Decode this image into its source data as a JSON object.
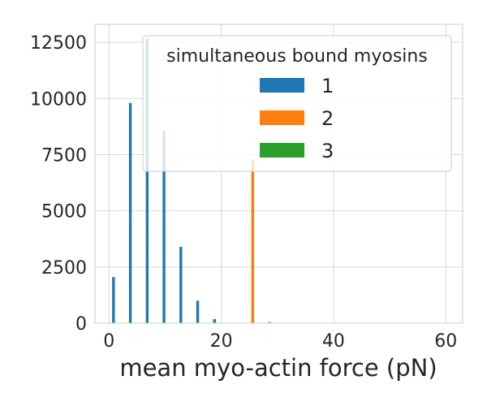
{
  "chart_data": {
    "type": "bar",
    "title": "",
    "xlabel": "mean myo-actin force (pN)",
    "ylabel": "",
    "xlim": [
      -2.5,
      63
    ],
    "ylim": [
      0,
      13300
    ],
    "x_ticks": [
      0,
      20,
      40,
      60
    ],
    "y_ticks": [
      0,
      2500,
      5000,
      7500,
      10000,
      12500
    ],
    "grid": true,
    "legend": {
      "title": "simultaneous bound myosins",
      "placement": "top-right"
    },
    "series": [
      {
        "name": "1",
        "color": "#1f77b4",
        "points": [
          {
            "x": 0.8,
            "y": 2050
          },
          {
            "x": 3.8,
            "y": 9800
          },
          {
            "x": 6.8,
            "y": 12650
          },
          {
            "x": 9.8,
            "y": 8550
          },
          {
            "x": 12.8,
            "y": 3400
          },
          {
            "x": 15.8,
            "y": 1000
          },
          {
            "x": 18.8,
            "y": 180
          },
          {
            "x": 21.8,
            "y": 20
          }
        ]
      },
      {
        "name": "2",
        "color": "#ff7f0e",
        "points": [
          {
            "x": 25.6,
            "y": 7300
          },
          {
            "x": 28.6,
            "y": 60
          }
        ]
      },
      {
        "name": "3",
        "color": "#2ca02c",
        "points": []
      }
    ]
  }
}
